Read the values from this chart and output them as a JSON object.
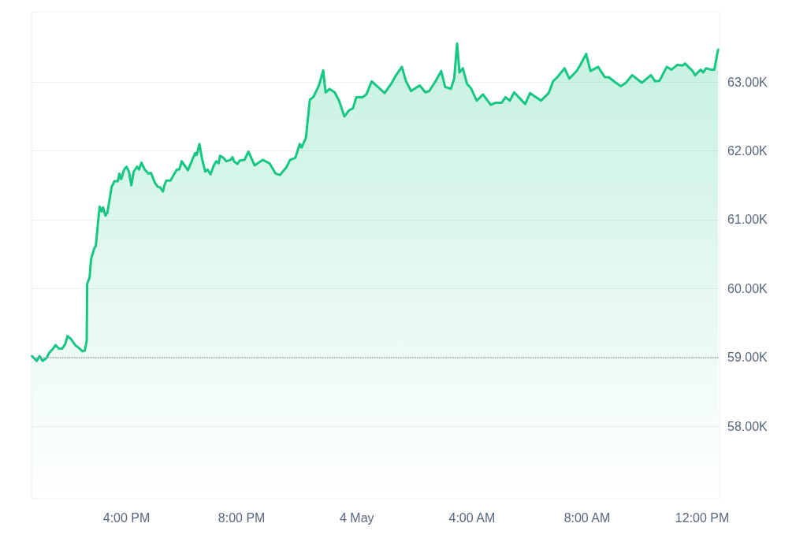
{
  "chart_data": {
    "type": "area",
    "x": [
      "--05-03T12:43",
      "--05-03T12:53",
      "--05-03T12:59",
      "--05-03T13:05",
      "--05-03T13:13",
      "--05-03T13:19",
      "--05-03T13:26",
      "--05-03T13:32",
      "--05-03T13:39",
      "--05-03T13:46",
      "--05-03T13:52",
      "--05-03T13:57",
      "--05-03T14:04",
      "--05-03T14:13",
      "--05-03T14:22",
      "--05-03T14:28",
      "--05-03T14:33",
      "--05-03T14:37",
      "--05-03T14:38",
      "--05-03T14:43",
      "--05-03T14:46",
      "--05-03T14:49",
      "--05-03T14:53",
      "--05-03T14:56",
      "--05-03T15:01",
      "--05-03T15:04",
      "--05-03T15:08",
      "--05-03T15:11",
      "--05-03T15:16",
      "--05-03T15:20",
      "--05-03T15:26",
      "--05-03T15:29",
      "--05-03T15:35",
      "--05-03T15:42",
      "--05-03T15:45",
      "--05-03T15:49",
      "--05-03T15:55",
      "--05-03T16:00",
      "--05-03T16:05",
      "--05-03T16:10",
      "--05-03T16:15",
      "--05-03T16:22",
      "--05-03T16:26",
      "--05-03T16:31",
      "--05-03T16:38",
      "--05-03T16:46",
      "--05-03T16:51",
      "--05-03T16:59",
      "--05-03T17:05",
      "--05-03T17:10",
      "--05-03T17:16",
      "--05-03T17:19",
      "--05-03T17:23",
      "--05-03T17:32",
      "--05-03T17:38",
      "--05-03T17:45",
      "--05-03T17:50",
      "--05-03T17:55",
      "--05-03T18:01",
      "--05-03T18:08",
      "--05-03T18:16",
      "--05-03T18:23",
      "--05-03T18:26",
      "--05-03T18:32",
      "--05-03T18:37",
      "--05-03T18:44",
      "--05-03T18:49",
      "--05-03T18:55",
      "--05-03T19:02",
      "--05-03T19:07",
      "--05-03T19:12",
      "--05-03T19:15",
      "--05-03T19:22",
      "--05-03T19:28",
      "--05-03T19:37",
      "--05-03T19:41",
      "--05-03T19:44",
      "--05-03T19:51",
      "--05-03T19:56",
      "--05-03T20:06",
      "--05-03T20:14",
      "--05-03T20:27",
      "--05-03T20:44",
      "--05-03T20:58",
      "--05-03T21:11",
      "--05-03T21:20",
      "--05-03T21:33",
      "--05-03T21:41",
      "--05-03T21:52",
      "--05-03T22:01",
      "--05-03T22:05",
      "--05-03T22:14",
      "--05-03T22:22",
      "--05-03T22:30",
      "--05-03T22:41",
      "--05-03T22:50",
      "--05-03T22:55",
      "--05-03T23:03",
      "--05-03T23:14",
      "--05-03T23:23",
      "--05-03T23:34",
      "--05-03T23:44",
      "--05-03T23:52",
      "--05-03T23:59",
      "--05-04T00:12",
      "--05-04T00:20",
      "--05-04T00:31",
      "--05-04T00:44",
      "--05-04T00:58",
      "--05-04T01:13",
      "--05-04T01:20",
      "--05-04T01:34",
      "--05-04T01:42",
      "--05-04T01:53",
      "--05-04T02:02",
      "--05-04T02:11",
      "--05-04T02:23",
      "--05-04T02:31",
      "--05-04T02:44",
      "--05-04T02:56",
      "--05-04T03:04",
      "--05-04T03:16",
      "--05-04T03:23",
      "--05-04T03:29",
      "--05-04T03:34",
      "--05-04T03:41",
      "--05-04T03:50",
      "--05-04T03:58",
      "--05-04T04:10",
      "--05-04T04:23",
      "--05-04T04:39",
      "--05-04T04:50",
      "--05-04T05:02",
      "--05-04T05:10",
      "--05-04T05:19",
      "--05-04T05:28",
      "--05-04T05:43",
      "--05-04T05:51",
      "--05-04T06:01",
      "--05-04T06:24",
      "--05-04T06:40",
      "--05-04T06:49",
      "--05-04T06:58",
      "--05-04T07:13",
      "--05-04T07:23",
      "--05-04T07:38",
      "--05-04T07:46",
      "--05-04T07:58",
      "--05-04T08:07",
      "--05-04T08:23",
      "--05-04T08:37",
      "--05-04T08:45",
      "--05-04T08:56",
      "--05-04T09:10",
      "--05-04T09:21",
      "--05-04T09:34",
      "--05-04T09:54",
      "--05-04T10:13",
      "--05-04T10:22",
      "--05-04T10:31",
      "--05-04T10:46",
      "--05-04T10:56",
      "--05-04T11:08",
      "--05-04T11:19",
      "--05-04T11:24",
      "--05-04T11:40",
      "--05-04T11:45",
      "--05-04T11:57",
      "--05-04T12:02",
      "--05-04T12:08",
      "--05-04T12:18",
      "--05-04T12:25",
      "--05-04T12:33"
    ],
    "series": [
      {
        "color": "#16c784",
        "values": [
          59020,
          58950,
          59020,
          58950,
          58990,
          59070,
          59120,
          59180,
          59130,
          59130,
          59190,
          59310,
          59270,
          59180,
          59130,
          59090,
          59100,
          59240,
          60070,
          60160,
          60420,
          60500,
          60590,
          60620,
          60990,
          61190,
          61120,
          61180,
          61060,
          61100,
          61350,
          61480,
          61560,
          61560,
          61670,
          61590,
          61730,
          61770,
          61700,
          61500,
          61700,
          61770,
          61730,
          61830,
          61730,
          61670,
          61680,
          61540,
          61480,
          61470,
          61410,
          61500,
          61570,
          61570,
          61650,
          61730,
          61730,
          61850,
          61790,
          61720,
          61850,
          61970,
          61940,
          62100,
          61900,
          61700,
          61730,
          61660,
          61790,
          61850,
          61820,
          61930,
          61900,
          61850,
          61870,
          61910,
          61850,
          61810,
          61860,
          61870,
          61990,
          61790,
          61870,
          61820,
          61670,
          61650,
          61760,
          61870,
          61900,
          62100,
          62050,
          62190,
          62740,
          62790,
          62950,
          63170,
          62850,
          62900,
          62850,
          62730,
          62500,
          62590,
          62620,
          62780,
          62780,
          62820,
          63010,
          62930,
          62840,
          62990,
          63080,
          63220,
          63020,
          62870,
          62910,
          62950,
          62850,
          62870,
          63010,
          63160,
          62930,
          62900,
          63050,
          63560,
          63140,
          63200,
          62970,
          62910,
          62730,
          62820,
          62670,
          62700,
          62700,
          62780,
          62730,
          62850,
          62740,
          62680,
          62840,
          62730,
          62840,
          63010,
          63070,
          63200,
          63050,
          63160,
          63250,
          63410,
          63160,
          63220,
          63070,
          63070,
          63010,
          62940,
          62990,
          63100,
          62990,
          63100,
          63010,
          63020,
          63220,
          63180,
          63250,
          63240,
          63270,
          63160,
          63100,
          63180,
          63140,
          63200,
          63180,
          63180,
          63470
        ]
      }
    ],
    "xlim": [
      "--05-03T12:42",
      "--05-04T12:36"
    ],
    "xticks": [
      {
        "value": "--05-03T16:00",
        "label": "4:00 PM"
      },
      {
        "value": "--05-03T20:00",
        "label": "8:00 PM"
      },
      {
        "value": "--05-04T00:00",
        "label": "4 May"
      },
      {
        "value": "--05-04T04:00",
        "label": "4:00 AM"
      },
      {
        "value": "--05-04T08:00",
        "label": "8:00 AM"
      },
      {
        "value": "--05-04T12:00",
        "label": "12:00 PM"
      }
    ],
    "ylim": [
      56950,
      64020
    ],
    "yticks": [
      {
        "value": 58000,
        "label": "58.00K"
      },
      {
        "value": 59000,
        "label": "59.00K"
      },
      {
        "value": 60000,
        "label": "60.00K"
      },
      {
        "value": 61000,
        "label": "61.00K"
      },
      {
        "value": 62000,
        "label": "62.00K"
      },
      {
        "value": 63000,
        "label": "63.00K"
      }
    ],
    "grid": "y",
    "marker": "none",
    "line_style": "solid",
    "ref_lines": [
      {
        "axis": "y",
        "value": 59000,
        "color": "#9aa0a6",
        "line_style": "dotted"
      }
    ]
  }
}
